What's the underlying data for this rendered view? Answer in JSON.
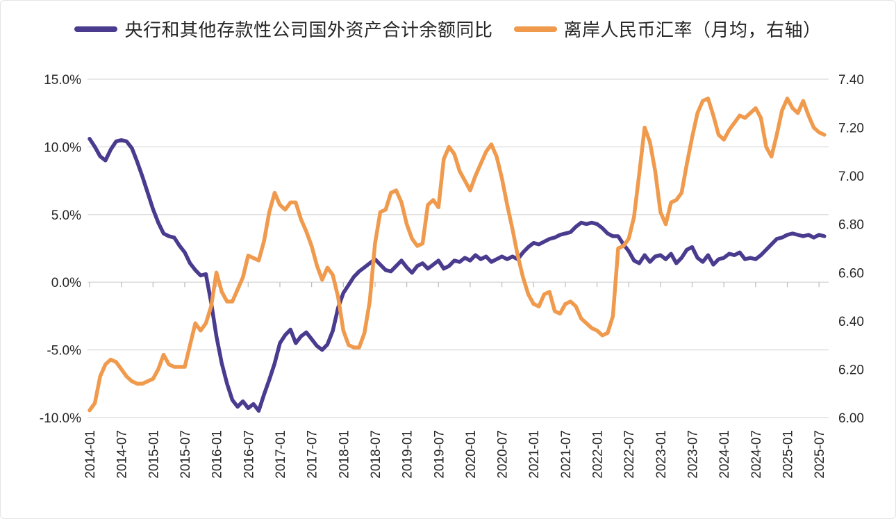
{
  "chart_data": {
    "type": "line",
    "title": "",
    "x_start": "2014-01",
    "x_frequency": "monthly",
    "x_tick_labels": [
      "2014-01",
      "2014-07",
      "2015-01",
      "2015-07",
      "2016-01",
      "2016-07",
      "2017-01",
      "2017-07",
      "2018-01",
      "2018-07",
      "2019-01",
      "2019-07",
      "2020-01",
      "2020-07",
      "2021-01",
      "2021-07",
      "2022-01",
      "2022-07",
      "2023-01",
      "2023-07",
      "2024-01",
      "2024-07",
      "2025-01",
      "2025-07"
    ],
    "grid": true,
    "legend_position": "top",
    "left_axis": {
      "tick_labels": [
        "15.0%",
        "10.0%",
        "5.0%",
        "0.0%",
        "-5.0%",
        "-10.0%"
      ],
      "min": -10,
      "max": 15,
      "unit": "%"
    },
    "right_axis": {
      "tick_labels": [
        "7.40",
        "7.20",
        "7.00",
        "6.80",
        "6.60",
        "6.40",
        "6.20",
        "6.00"
      ],
      "min": 6.0,
      "max": 7.4
    },
    "series": [
      {
        "name": "央行和其他存款性公司国外资产合计余额同比",
        "axis": "left",
        "color": "#4a3b8f",
        "values": [
          10.6,
          10.0,
          9.3,
          9.0,
          9.8,
          10.4,
          10.5,
          10.4,
          9.9,
          8.9,
          7.8,
          6.6,
          5.4,
          4.4,
          3.6,
          3.4,
          3.3,
          2.7,
          2.2,
          1.4,
          0.9,
          0.5,
          0.6,
          -1.5,
          -4.0,
          -6.0,
          -7.5,
          -8.7,
          -9.2,
          -8.8,
          -9.3,
          -9.0,
          -9.5,
          -8.3,
          -7.2,
          -6.0,
          -4.5,
          -3.9,
          -3.5,
          -4.5,
          -4.0,
          -3.7,
          -4.2,
          -4.7,
          -5.0,
          -4.6,
          -3.6,
          -1.9,
          -0.8,
          -0.2,
          0.4,
          0.8,
          1.1,
          1.4,
          1.7,
          1.3,
          0.9,
          0.8,
          1.2,
          1.6,
          1.1,
          0.7,
          1.2,
          1.4,
          1.0,
          1.3,
          1.6,
          1.0,
          1.2,
          1.6,
          1.5,
          1.8,
          1.6,
          2.0,
          1.7,
          1.9,
          1.5,
          1.7,
          1.9,
          1.7,
          1.9,
          1.7,
          2.2,
          2.6,
          2.9,
          2.8,
          3.0,
          3.2,
          3.3,
          3.5,
          3.6,
          3.7,
          4.1,
          4.4,
          4.3,
          4.4,
          4.3,
          4.0,
          3.6,
          3.4,
          3.4,
          2.8,
          2.3,
          1.6,
          1.4,
          2.0,
          1.5,
          1.9,
          2.0,
          1.7,
          2.1,
          1.4,
          1.8,
          2.4,
          2.6,
          1.8,
          1.5,
          2.0,
          1.3,
          1.7,
          1.8,
          2.1,
          2.0,
          2.2,
          1.7,
          1.8,
          1.7,
          2.0,
          2.4,
          2.8,
          3.2,
          3.3,
          3.5,
          3.6,
          3.5,
          3.4,
          3.5,
          3.3,
          3.5,
          3.4
        ]
      },
      {
        "name": "离岸人民币汇率（月均，右轴）",
        "axis": "right",
        "color": "#f09a4d",
        "values": [
          6.03,
          6.06,
          6.17,
          6.22,
          6.24,
          6.23,
          6.2,
          6.17,
          6.15,
          6.14,
          6.14,
          6.15,
          6.16,
          6.2,
          6.26,
          6.22,
          6.21,
          6.21,
          6.21,
          6.3,
          6.39,
          6.36,
          6.39,
          6.46,
          6.6,
          6.52,
          6.48,
          6.48,
          6.53,
          6.58,
          6.67,
          6.66,
          6.65,
          6.73,
          6.85,
          6.93,
          6.88,
          6.86,
          6.89,
          6.89,
          6.82,
          6.77,
          6.71,
          6.63,
          6.57,
          6.62,
          6.59,
          6.5,
          6.36,
          6.3,
          6.29,
          6.29,
          6.35,
          6.48,
          6.72,
          6.85,
          6.86,
          6.93,
          6.94,
          6.89,
          6.8,
          6.74,
          6.71,
          6.72,
          6.88,
          6.9,
          6.87,
          7.07,
          7.12,
          7.09,
          7.02,
          6.98,
          6.94,
          7.0,
          7.05,
          7.1,
          7.13,
          7.08,
          6.99,
          6.88,
          6.78,
          6.67,
          6.58,
          6.51,
          6.47,
          6.46,
          6.51,
          6.52,
          6.44,
          6.43,
          6.47,
          6.48,
          6.46,
          6.41,
          6.39,
          6.37,
          6.36,
          6.34,
          6.35,
          6.42,
          6.7,
          6.71,
          6.74,
          6.83,
          7.01,
          7.2,
          7.14,
          7.02,
          6.85,
          6.8,
          6.89,
          6.9,
          6.93,
          7.05,
          7.16,
          7.26,
          7.31,
          7.32,
          7.25,
          7.17,
          7.15,
          7.19,
          7.22,
          7.25,
          7.24,
          7.26,
          7.28,
          7.24,
          7.12,
          7.08,
          7.17,
          7.27,
          7.32,
          7.28,
          7.26,
          7.31,
          7.25,
          7.2,
          7.18,
          7.17
        ]
      }
    ]
  }
}
